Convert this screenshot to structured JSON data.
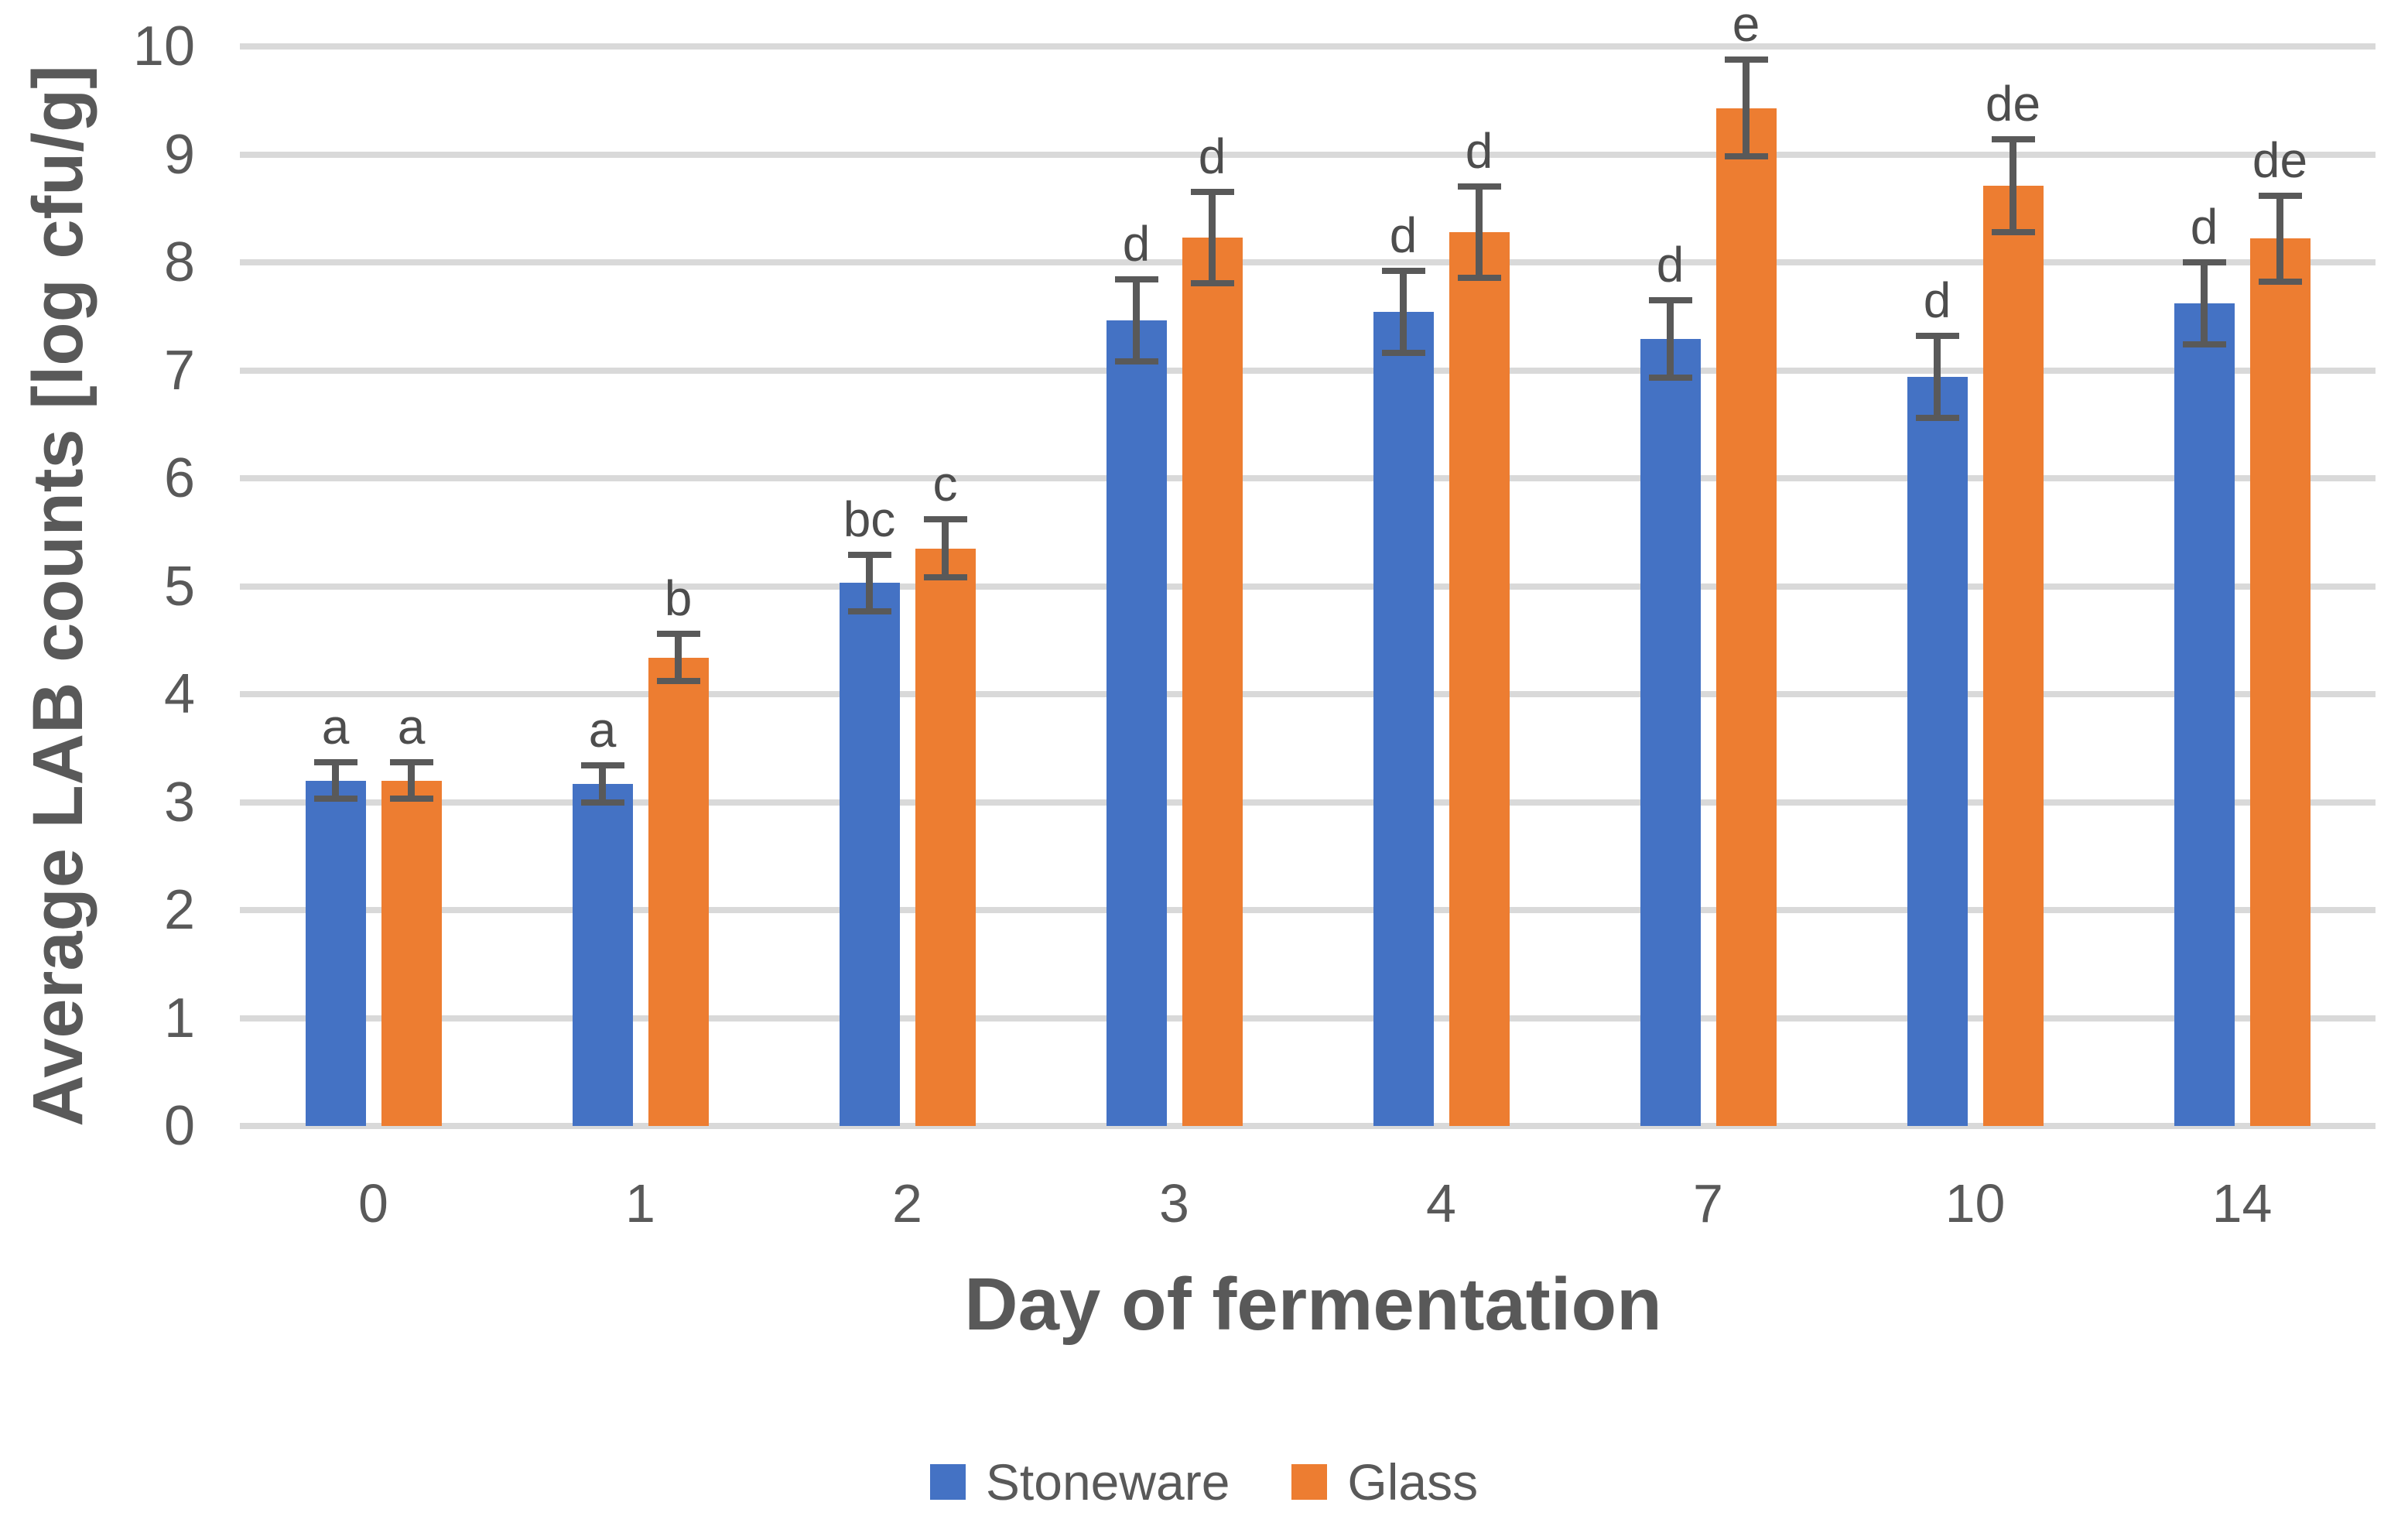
{
  "chart_data": {
    "type": "bar",
    "title": "",
    "xlabel": "Day of fermentation",
    "ylabel": "Average LAB counts [log cfu/g]",
    "ylim": [
      0,
      10
    ],
    "yticks": [
      0,
      1,
      2,
      3,
      4,
      5,
      6,
      7,
      8,
      9,
      10
    ],
    "grid": true,
    "legend_position": "bottom",
    "categories": [
      "0",
      "1",
      "2",
      "3",
      "4",
      "7",
      "10",
      "14"
    ],
    "series": [
      {
        "name": "Stoneware",
        "color": "#4472C4",
        "values": [
          3.2,
          3.17,
          5.03,
          7.46,
          7.54,
          7.29,
          6.94,
          7.62
        ],
        "error_bars": [
          0.17,
          0.17,
          0.26,
          0.38,
          0.38,
          0.36,
          0.38,
          0.38
        ],
        "significance_letters": [
          "a",
          "a",
          "bc",
          "d",
          "d",
          "d",
          "d",
          "d"
        ]
      },
      {
        "name": "Glass",
        "color": "#ED7D31",
        "values": [
          3.2,
          4.34,
          5.35,
          8.23,
          8.28,
          9.43,
          8.71,
          8.22
        ],
        "error_bars": [
          0.17,
          0.22,
          0.27,
          0.42,
          0.42,
          0.45,
          0.43,
          0.4
        ],
        "significance_letters": [
          "a",
          "b",
          "c",
          "d",
          "d",
          "e",
          "de",
          "de"
        ]
      }
    ],
    "colors": {
      "gridline": "#D9D9D9",
      "axis_text": "#595959",
      "error_bar": "#595959",
      "letter_text": "#4d4d4d"
    }
  }
}
